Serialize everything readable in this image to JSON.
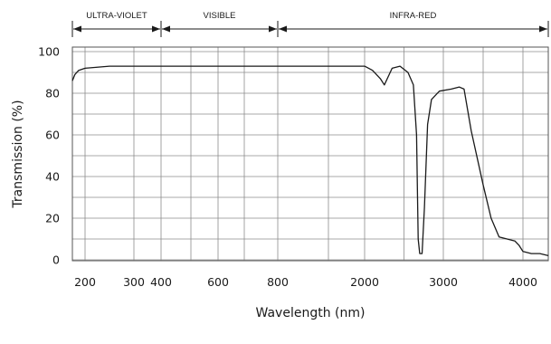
{
  "chart_data": {
    "type": "line",
    "xlabel": "Wavelength (nm)",
    "ylabel": "Transmission (%)",
    "x_scale": "piecewise (200–800 nm and 800–4000 nm segments)",
    "ylim": [
      0,
      100
    ],
    "x_ticks": [
      {
        "value": 200,
        "label": "200"
      },
      {
        "value": 300,
        "label": "300"
      },
      {
        "value": 400,
        "label": "400"
      },
      {
        "value": 600,
        "label": "600"
      },
      {
        "value": 800,
        "label": "800"
      },
      {
        "value": 2000,
        "label": "2000"
      },
      {
        "value": 3000,
        "label": "3000"
      },
      {
        "value": 4000,
        "label": "4000"
      }
    ],
    "x_grid_values": [
      200,
      300,
      400,
      500,
      600,
      700,
      800,
      1500,
      2000,
      2500,
      3000,
      3500,
      4000
    ],
    "y_ticks": [
      {
        "value": 0,
        "label": "0"
      },
      {
        "value": 20,
        "label": "20"
      },
      {
        "value": 40,
        "label": "40"
      },
      {
        "value": 60,
        "label": "60"
      },
      {
        "value": 80,
        "label": "80"
      },
      {
        "value": 100,
        "label": "100"
      }
    ],
    "y_grid_values": [
      0,
      10,
      20,
      30,
      40,
      50,
      60,
      70,
      80,
      90,
      100
    ],
    "grid": true,
    "regions": [
      {
        "label": "ULTRA-VIOLET",
        "from": 150,
        "to": 400
      },
      {
        "label": "VISIBLE",
        "from": 400,
        "to": 800
      },
      {
        "label": "INFRA-RED",
        "from": 800,
        "to": 4300
      }
    ],
    "series": [
      {
        "points": [
          [
            150,
            86
          ],
          [
            160,
            89
          ],
          [
            175,
            91
          ],
          [
            200,
            92
          ],
          [
            250,
            93
          ],
          [
            300,
            93
          ],
          [
            400,
            93
          ],
          [
            500,
            93
          ],
          [
            600,
            93
          ],
          [
            700,
            93
          ],
          [
            800,
            93
          ],
          [
            1200,
            93
          ],
          [
            1600,
            93
          ],
          [
            2000,
            93
          ],
          [
            2100,
            91
          ],
          [
            2200,
            87
          ],
          [
            2250,
            84
          ],
          [
            2300,
            88
          ],
          [
            2350,
            92
          ],
          [
            2450,
            93
          ],
          [
            2550,
            90
          ],
          [
            2620,
            84
          ],
          [
            2660,
            60
          ],
          [
            2680,
            10
          ],
          [
            2700,
            3
          ],
          [
            2730,
            3
          ],
          [
            2760,
            25
          ],
          [
            2800,
            65
          ],
          [
            2850,
            77
          ],
          [
            2950,
            81
          ],
          [
            3100,
            82
          ],
          [
            3200,
            83
          ],
          [
            3260,
            82
          ],
          [
            3350,
            62
          ],
          [
            3500,
            36
          ],
          [
            3600,
            20
          ],
          [
            3700,
            11
          ],
          [
            3800,
            10
          ],
          [
            3900,
            9
          ],
          [
            3950,
            7
          ],
          [
            4000,
            4
          ],
          [
            4100,
            3
          ],
          [
            4200,
            3
          ],
          [
            4300,
            2
          ]
        ]
      }
    ]
  }
}
